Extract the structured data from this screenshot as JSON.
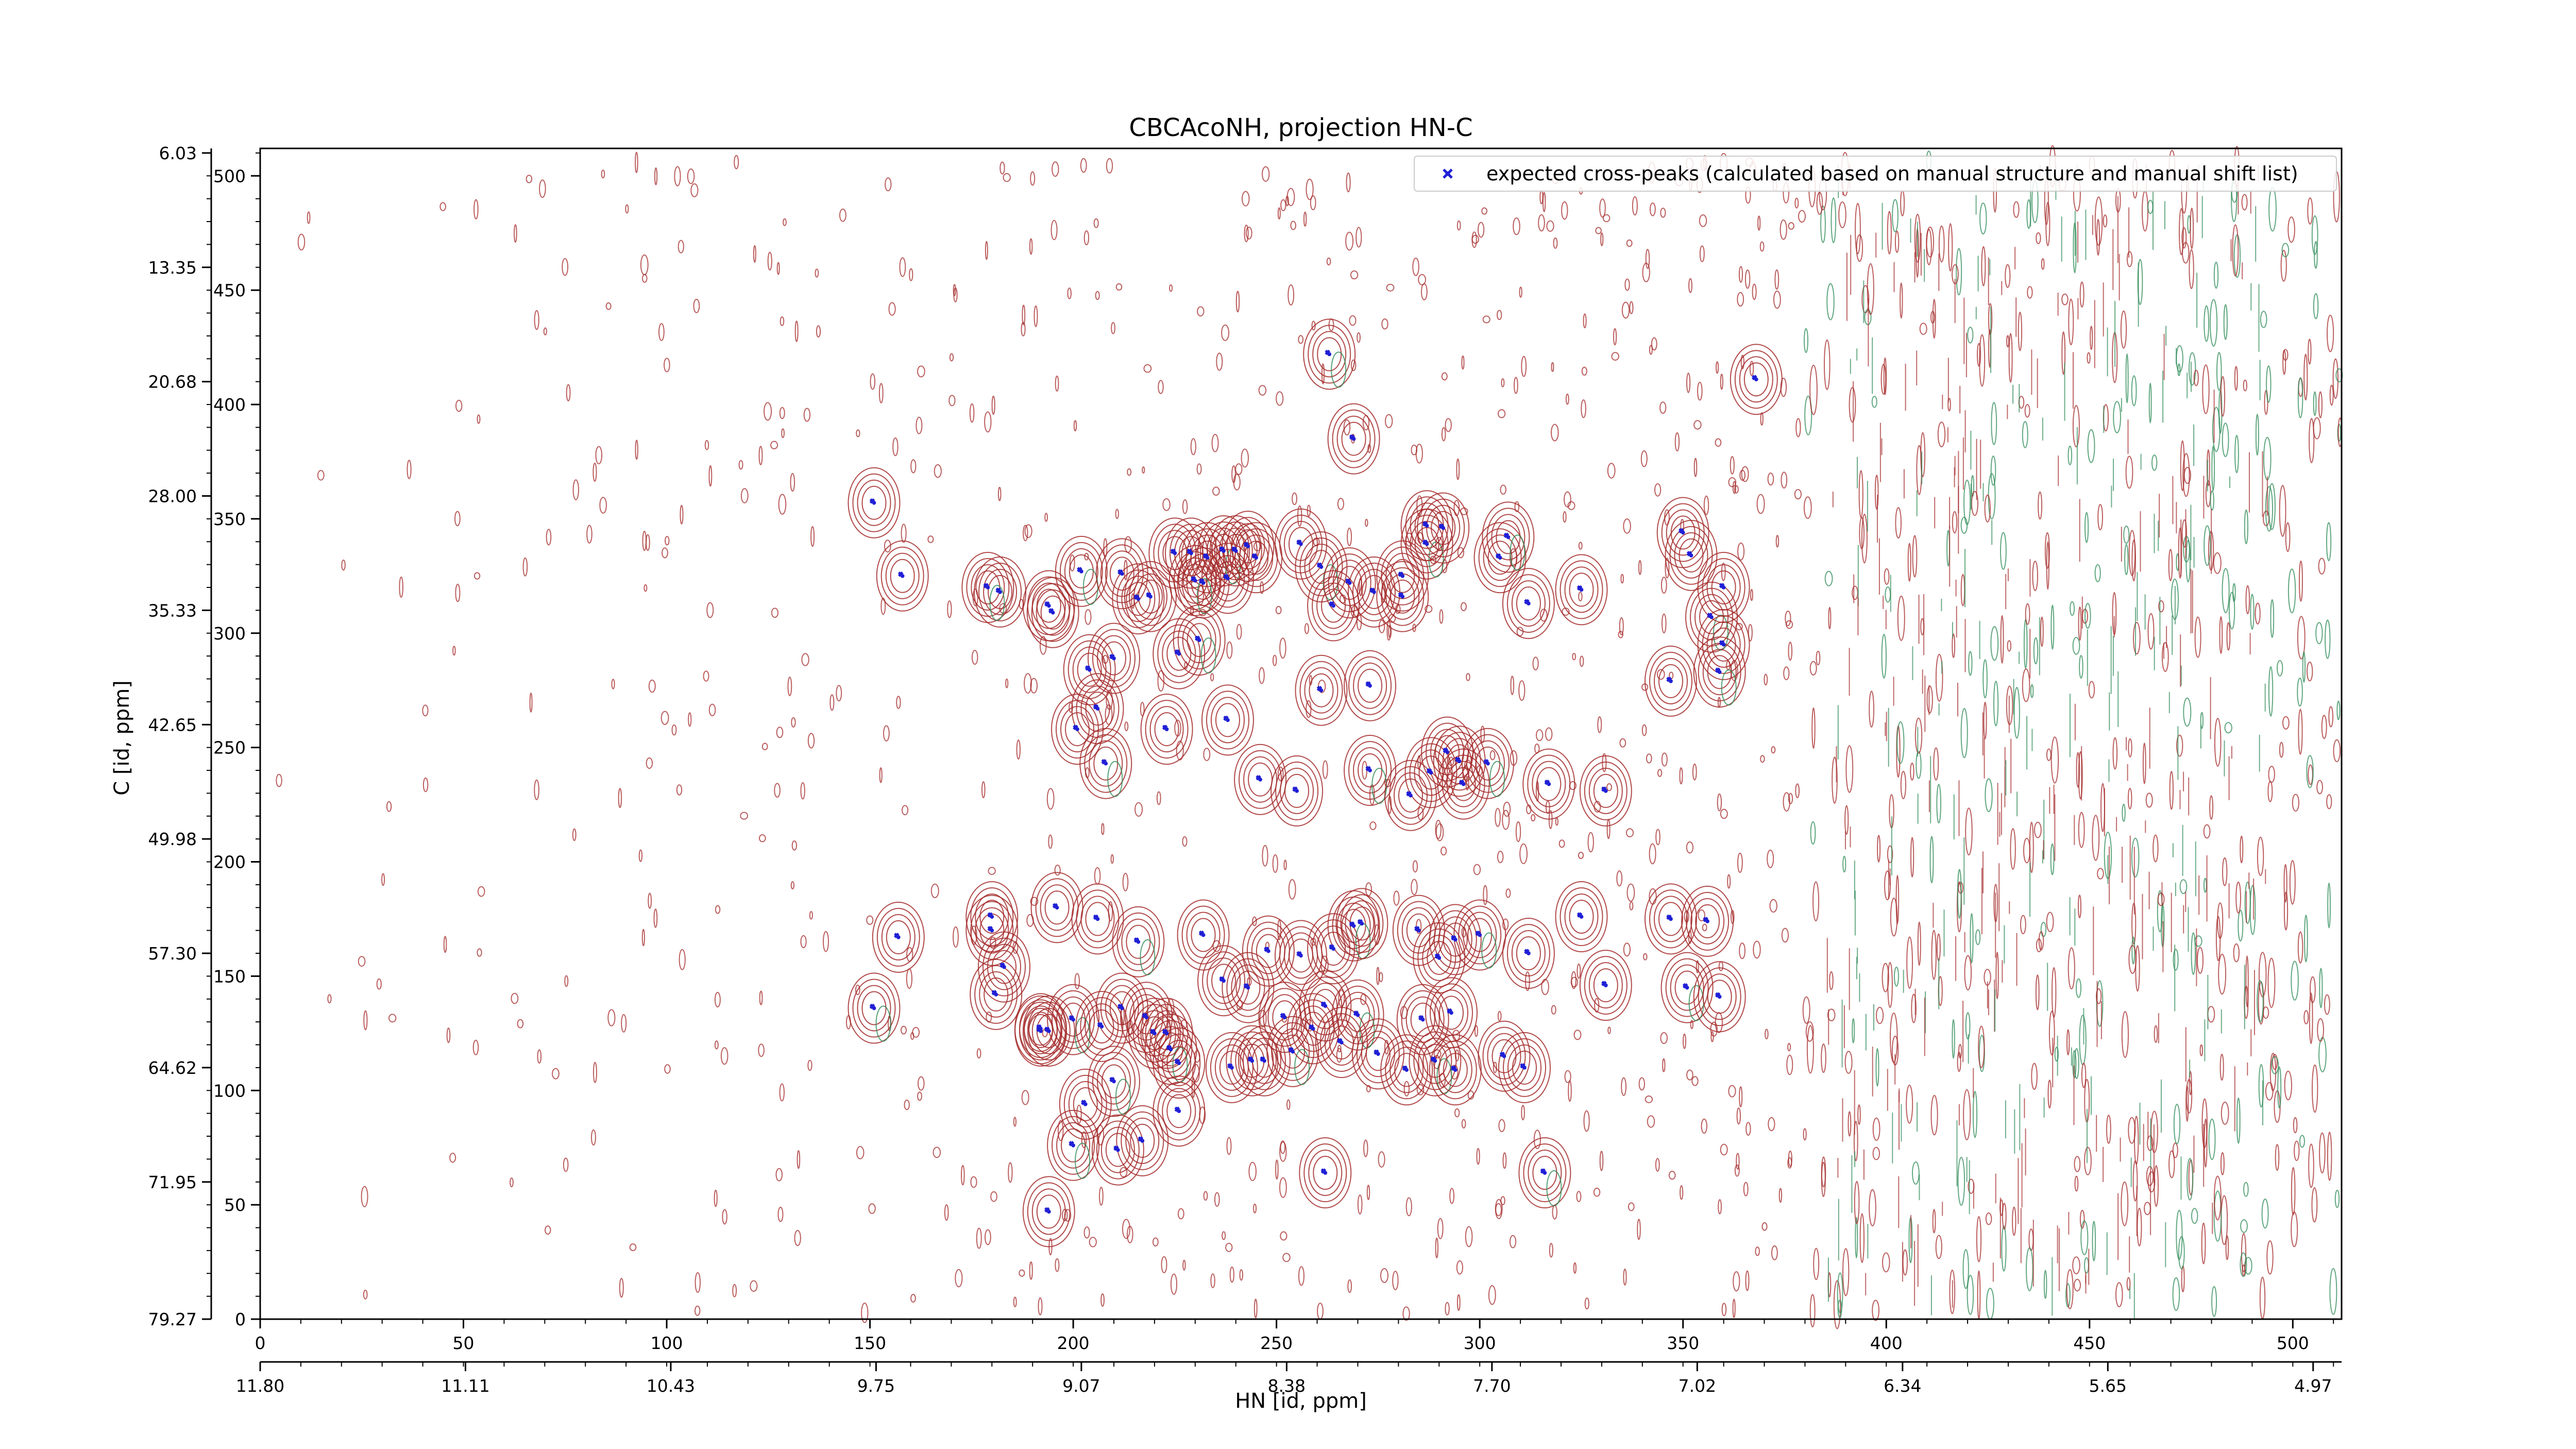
{
  "chart_data": {
    "type": "scatter",
    "title": "CBCAcoNH, projection HN-C",
    "xlabel": "HN [id, ppm]",
    "ylabel": "C [id, ppm]",
    "xlim": [
      0,
      512
    ],
    "ylim": [
      0,
      512
    ],
    "x_ticks": [
      0,
      50,
      100,
      150,
      200,
      250,
      300,
      350,
      400,
      450,
      500
    ],
    "y_ticks": [
      0,
      50,
      100,
      150,
      200,
      250,
      300,
      350,
      400,
      450,
      500
    ],
    "x_ppm_ticks": {
      "positions": [
        0,
        50.5,
        101,
        151.5,
        202,
        252.5,
        303,
        353.5,
        404,
        454.5,
        505
      ],
      "labels": [
        "11.80",
        "11.11",
        "10.43",
        "9.75",
        "9.07",
        "8.38",
        "7.70",
        "7.02",
        "6.34",
        "5.65",
        "4.97"
      ]
    },
    "y_ppm_ticks": {
      "positions": [
        510,
        460,
        410,
        360,
        310,
        260,
        210,
        160,
        110,
        60,
        0
      ],
      "labels": [
        "6.03",
        "13.35",
        "20.68",
        "28.00",
        "35.33",
        "42.65",
        "49.98",
        "57.30",
        "64.62",
        "71.95",
        "79.27"
      ]
    },
    "legend": {
      "position": "top-right",
      "label": "expected cross-peaks (calculated based on manual structure and manual shift list)"
    },
    "colors": {
      "marker": "#1f1fd6",
      "contour_positive": "#a52a2a",
      "contour_negative": "#2e8b57"
    },
    "series": [
      {
        "name": "expected cross-peaks (calculated based on manual structure and manual shift list)",
        "x": [
          263,
          368,
          269,
          151,
          158,
          202,
          212,
          225,
          229,
          233,
          237,
          240,
          243,
          245,
          238,
          230,
          232,
          219,
          216,
          256,
          261,
          264,
          268,
          274,
          281,
          287,
          287,
          291,
          281,
          182,
          179,
          194,
          195,
          210,
          226,
          231,
          261,
          273,
          295,
          305,
          307,
          312,
          325,
          350,
          352,
          357,
          360,
          204,
          206,
          201,
          208,
          223,
          238,
          246,
          255,
          273,
          283,
          288,
          292,
          296,
          302,
          317,
          331,
          347,
          360,
          359,
          180,
          180,
          196,
          206,
          216,
          232,
          248,
          256,
          264,
          269,
          271,
          285,
          290,
          294,
          300,
          312,
          325,
          347,
          356,
          151,
          157,
          183,
          181,
          192,
          200,
          207,
          218,
          212,
          220,
          224,
          237,
          243,
          252,
          262,
          270,
          286,
          293,
          306,
          331,
          351,
          359,
          192,
          194,
          203,
          210,
          217,
          226,
          239,
          247,
          254,
          259,
          266,
          275,
          282,
          289,
          294,
          311,
          226,
          244,
          200,
          211,
          194,
          223,
          262,
          316
        ],
        "y": [
          422,
          411,
          385,
          357,
          325,
          327,
          326,
          335,
          335,
          333,
          336,
          336,
          338,
          333,
          324,
          323,
          322,
          316,
          315,
          339,
          329,
          312,
          322,
          318,
          316,
          339,
          347,
          346,
          325,
          318,
          320,
          312,
          309,
          289,
          291,
          297,
          275,
          277,
          244,
          333,
          342,
          313,
          319,
          344,
          334,
          307,
          320,
          284,
          267,
          258,
          243,
          258,
          262,
          236,
          231,
          240,
          229,
          239,
          248,
          234,
          243,
          234,
          231,
          279,
          295,
          283,
          176,
          170,
          180,
          175,
          165,
          168,
          161,
          159,
          162,
          172,
          173,
          170,
          158,
          166,
          168,
          160,
          176,
          175,
          174,
          136,
          167,
          154,
          142,
          126,
          131,
          128,
          132,
          136,
          125,
          118,
          148,
          145,
          132,
          137,
          133,
          131,
          134,
          115,
          146,
          145,
          141,
          127,
          126,
          94,
          104,
          78,
          112,
          110,
          113,
          117,
          127,
          121,
          116,
          109,
          113,
          109,
          110,
          91,
          113,
          76,
          74,
          47,
          125,
          64,
          64
        ]
      }
    ]
  }
}
